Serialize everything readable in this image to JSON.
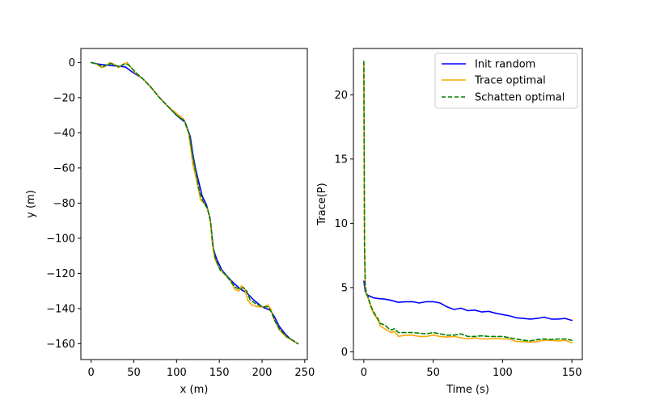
{
  "chart_data": [
    {
      "type": "line",
      "title": "",
      "xlabel": "x (m)",
      "ylabel": "y (m)",
      "xlim": [
        -12,
        253
      ],
      "ylim": [
        -169,
        8
      ],
      "xticks": [
        0,
        50,
        100,
        150,
        200,
        250
      ],
      "yticks": [
        0,
        -20,
        -40,
        -60,
        -80,
        -100,
        -120,
        -140,
        -160
      ],
      "series": [
        {
          "color": "#0000ff",
          "style": "solid",
          "points": [
            [
              0,
              0
            ],
            [
              10,
              -1
            ],
            [
              20,
              -1.5
            ],
            [
              30,
              -2
            ],
            [
              40,
              -2.5
            ],
            [
              50,
              -6
            ],
            [
              60,
              -9
            ],
            [
              70,
              -14
            ],
            [
              80,
              -20
            ],
            [
              90,
              -25
            ],
            [
              100,
              -30
            ],
            [
              110,
              -34
            ],
            [
              116,
              -42
            ],
            [
              119,
              -52
            ],
            [
              122,
              -60
            ],
            [
              126,
              -68
            ],
            [
              130,
              -76
            ],
            [
              135,
              -81
            ],
            [
              139,
              -88
            ],
            [
              141,
              -97
            ],
            [
              143,
              -106
            ],
            [
              147,
              -112
            ],
            [
              153,
              -118
            ],
            [
              160,
              -122
            ],
            [
              168,
              -126
            ],
            [
              175,
              -129
            ],
            [
              182,
              -131
            ],
            [
              190,
              -135
            ],
            [
              200,
              -139
            ],
            [
              210,
              -141
            ],
            [
              215,
              -145
            ],
            [
              220,
              -150
            ],
            [
              228,
              -155
            ],
            [
              235,
              -158
            ],
            [
              242,
              -160
            ]
          ]
        },
        {
          "color": "#ffa500",
          "style": "solid",
          "points": [
            [
              0,
              0
            ],
            [
              7,
              -1
            ],
            [
              12,
              -3
            ],
            [
              17,
              -2
            ],
            [
              22,
              0
            ],
            [
              27,
              -1
            ],
            [
              32,
              -3
            ],
            [
              37,
              -1
            ],
            [
              42,
              0
            ],
            [
              47,
              -3
            ],
            [
              52,
              -6
            ],
            [
              60,
              -9
            ],
            [
              70,
              -14
            ],
            [
              80,
              -20
            ],
            [
              90,
              -25
            ],
            [
              100,
              -29
            ],
            [
              108,
              -32
            ],
            [
              114,
              -40
            ],
            [
              117,
              -50
            ],
            [
              119,
              -58
            ],
            [
              122,
              -64
            ],
            [
              125,
              -71
            ],
            [
              128,
              -78
            ],
            [
              132,
              -80
            ],
            [
              137,
              -84
            ],
            [
              140,
              -92
            ],
            [
              142,
              -104
            ],
            [
              145,
              -112
            ],
            [
              150,
              -117
            ],
            [
              157,
              -121
            ],
            [
              163,
              -124
            ],
            [
              168,
              -129
            ],
            [
              173,
              -130
            ],
            [
              176,
              -127
            ],
            [
              180,
              -129
            ],
            [
              183,
              -135
            ],
            [
              188,
              -138
            ],
            [
              195,
              -139
            ],
            [
              202,
              -139
            ],
            [
              207,
              -138
            ],
            [
              210,
              -140
            ],
            [
              214,
              -146
            ],
            [
              220,
              -152
            ],
            [
              228,
              -156
            ],
            [
              235,
              -158
            ],
            [
              242,
              -160
            ]
          ]
        },
        {
          "color": "#008000",
          "style": "dashed",
          "points": [
            [
              0,
              0
            ],
            [
              8,
              -1
            ],
            [
              13,
              -2.5
            ],
            [
              18,
              -1.5
            ],
            [
              23,
              -0.5
            ],
            [
              28,
              -1.5
            ],
            [
              33,
              -2.5
            ],
            [
              38,
              -1
            ],
            [
              43,
              -1
            ],
            [
              48,
              -3.5
            ],
            [
              53,
              -6
            ],
            [
              60,
              -9
            ],
            [
              70,
              -14
            ],
            [
              80,
              -20
            ],
            [
              90,
              -25
            ],
            [
              100,
              -30
            ],
            [
              109,
              -33
            ],
            [
              115,
              -41
            ],
            [
              118,
              -51
            ],
            [
              121,
              -59
            ],
            [
              124,
              -66
            ],
            [
              127,
              -74
            ],
            [
              131,
              -79
            ],
            [
              136,
              -83
            ],
            [
              140,
              -91
            ],
            [
              142,
              -102
            ],
            [
              145,
              -111
            ],
            [
              151,
              -118
            ],
            [
              158,
              -121
            ],
            [
              164,
              -125
            ],
            [
              169,
              -128
            ],
            [
              174,
              -129
            ],
            [
              178,
              -128
            ],
            [
              182,
              -130
            ],
            [
              186,
              -135
            ],
            [
              192,
              -137
            ],
            [
              200,
              -139
            ],
            [
              207,
              -139
            ],
            [
              211,
              -142
            ],
            [
              215,
              -147
            ],
            [
              221,
              -152
            ],
            [
              229,
              -156
            ],
            [
              236,
              -158
            ],
            [
              242,
              -160
            ]
          ]
        }
      ]
    },
    {
      "type": "line",
      "title": "",
      "xlabel": "Time (s)",
      "ylabel": "Trace(P)",
      "xlim": [
        -7.5,
        157.5
      ],
      "ylim": [
        -0.6,
        23.6
      ],
      "xticks": [
        0,
        50,
        100,
        150
      ],
      "yticks": [
        0,
        5,
        10,
        15,
        20
      ],
      "legend_position": "upper-right",
      "series": [
        {
          "name": "Init random",
          "color": "#0000ff",
          "style": "solid",
          "x": [
            0,
            1,
            2,
            3,
            5,
            7,
            10,
            15,
            20,
            25,
            30,
            35,
            40,
            45,
            50,
            55,
            60,
            65,
            70,
            75,
            80,
            85,
            90,
            95,
            100,
            105,
            110,
            115,
            120,
            125,
            130,
            135,
            140,
            145,
            150
          ],
          "y": [
            5.5,
            4.7,
            4.5,
            4.4,
            4.3,
            4.2,
            4.15,
            4.1,
            4.0,
            3.85,
            3.9,
            3.9,
            3.8,
            3.9,
            3.9,
            3.8,
            3.5,
            3.3,
            3.4,
            3.2,
            3.25,
            3.1,
            3.15,
            3.0,
            2.9,
            2.8,
            2.65,
            2.6,
            2.55,
            2.6,
            2.7,
            2.55,
            2.55,
            2.6,
            2.45
          ]
        },
        {
          "name": "Trace optimal",
          "color": "#ffa500",
          "style": "solid",
          "x": [
            0,
            0.5,
            1,
            2,
            3,
            5,
            7,
            10,
            12,
            15,
            18,
            20,
            22,
            25,
            30,
            35,
            40,
            45,
            50,
            55,
            60,
            65,
            70,
            75,
            80,
            85,
            90,
            95,
            100,
            105,
            110,
            115,
            120,
            125,
            130,
            135,
            140,
            145,
            150
          ],
          "y": [
            22.5,
            8.0,
            5.0,
            4.4,
            4.2,
            3.5,
            3.0,
            2.5,
            2.0,
            1.8,
            1.6,
            1.5,
            1.6,
            1.2,
            1.3,
            1.3,
            1.2,
            1.2,
            1.3,
            1.2,
            1.15,
            1.2,
            1.1,
            1.0,
            1.1,
            1.0,
            1.0,
            1.05,
            1.0,
            1.0,
            0.8,
            0.8,
            0.75,
            0.8,
            0.9,
            0.9,
            0.85,
            0.9,
            0.7
          ]
        },
        {
          "name": "Schatten optimal",
          "color": "#008000",
          "style": "dashed",
          "x": [
            0,
            0.5,
            1,
            2,
            3,
            5,
            7,
            10,
            12,
            15,
            18,
            20,
            22,
            25,
            30,
            35,
            40,
            45,
            50,
            55,
            60,
            65,
            70,
            75,
            80,
            85,
            90,
            95,
            100,
            105,
            110,
            115,
            120,
            125,
            130,
            135,
            140,
            145,
            150
          ],
          "y": [
            22.6,
            8.5,
            5.2,
            4.5,
            4.3,
            3.6,
            3.1,
            2.6,
            2.2,
            2.1,
            1.8,
            1.7,
            1.8,
            1.5,
            1.5,
            1.5,
            1.45,
            1.4,
            1.5,
            1.4,
            1.3,
            1.3,
            1.4,
            1.2,
            1.2,
            1.25,
            1.2,
            1.2,
            1.2,
            1.1,
            1.0,
            0.9,
            0.85,
            0.95,
            1.0,
            0.95,
            1.0,
            1.0,
            0.9
          ]
        }
      ]
    }
  ]
}
